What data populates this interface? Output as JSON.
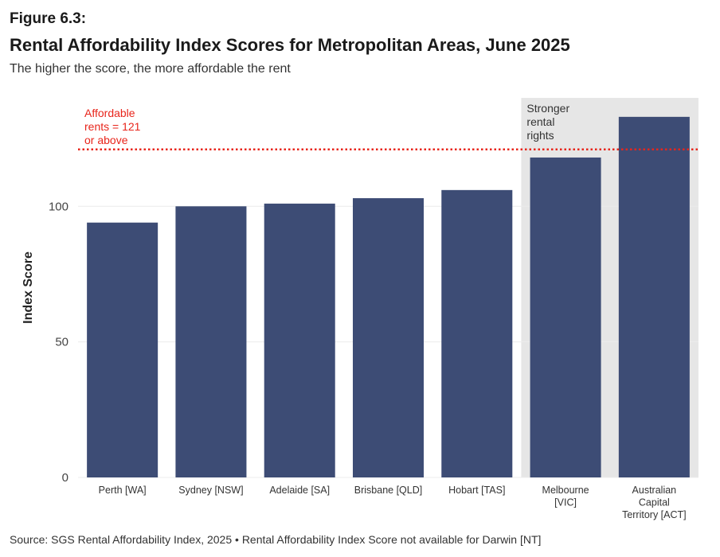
{
  "figure_label": "Figure 6.3:",
  "title": "Rental Affordability Index Scores for Metropolitan Areas, June 2025",
  "subtitle": "The higher the score, the more affordable the rent",
  "source": "Source: SGS Rental Affordability Index, 2025 • Rental Affordability Index Score not available for Darwin [NT]",
  "chart_data": {
    "type": "bar",
    "categories": [
      "Perth [WA]",
      "Sydney [NSW]",
      "Adelaide [SA]",
      "Brisbane [QLD]",
      "Hobart [TAS]",
      "Melbourne [VIC]",
      "Australian Capital Territory [ACT]"
    ],
    "category_lines": [
      [
        "Perth [WA]"
      ],
      [
        "Sydney [NSW]"
      ],
      [
        "Adelaide [SA]"
      ],
      [
        "Brisbane [QLD]"
      ],
      [
        "Hobart [TAS]"
      ],
      [
        "Melbourne",
        "[VIC]"
      ],
      [
        "Australian",
        "Capital",
        "Territory [ACT]"
      ]
    ],
    "values": [
      94,
      100,
      101,
      103,
      106,
      118,
      133
    ],
    "ylabel": "Index Score",
    "ylim": [
      0,
      140
    ],
    "yticks": [
      0,
      50,
      100
    ],
    "bar_color": "#3d4c75",
    "grid": true,
    "reference_line": {
      "value": 121,
      "color": "#e8251b",
      "style": "dotted",
      "label_lines": [
        "Affordable",
        "rents = 121",
        "or above"
      ]
    },
    "highlight_region": {
      "categories": [
        "Melbourne [VIC]",
        "Australian Capital Territory [ACT]"
      ],
      "color": "#e6e6e6",
      "label_lines": [
        "Stronger",
        "rental",
        "rights"
      ]
    }
  }
}
